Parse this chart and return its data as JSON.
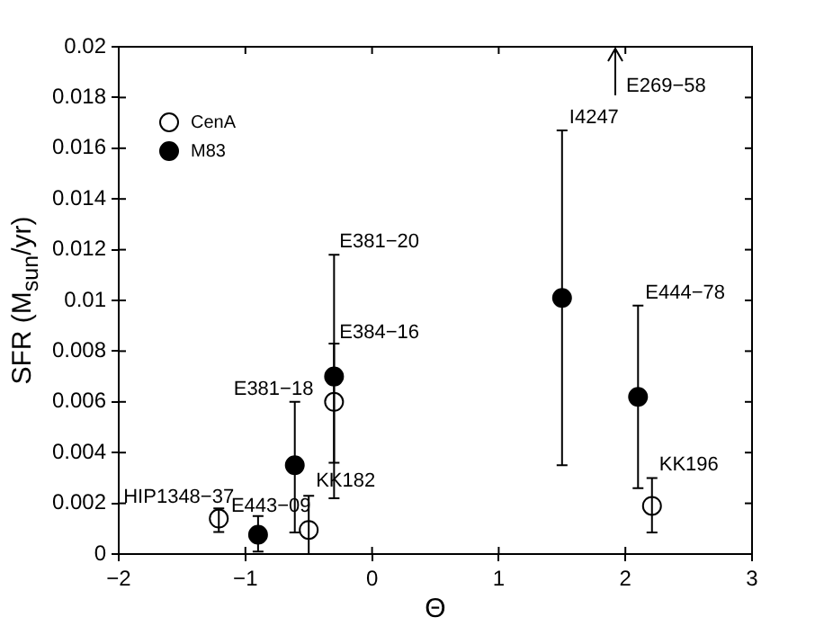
{
  "chart_data": {
    "type": "scatter",
    "xlabel": "Θ",
    "ylabel": "SFR (M$_{sun}$/yr)",
    "xlim": [
      -2,
      3
    ],
    "xticks": [
      -2,
      -1,
      0,
      1,
      2,
      3
    ],
    "ylim": [
      0,
      0.02
    ],
    "yticks": [
      0,
      0.002,
      0.004,
      0.006,
      0.008,
      0.01,
      0.012,
      0.014,
      0.016,
      0.018,
      0.02
    ],
    "legend": "top left",
    "marker": "circle",
    "series": [
      {
        "name": "CenA",
        "color": "#ffffff",
        "x": [
          -1.21,
          -0.5,
          -0.3,
          2.21
        ],
        "values": [
          0.0014,
          0.00095,
          0.006,
          0.0019
        ],
        "errors": [
          [
            0.00087,
            0.0018
          ],
          [
            0,
            0.0023
          ],
          [
            0.0022,
            0.0118
          ],
          [
            0.00085,
            0.003
          ]
        ]
      },
      {
        "name": "M83",
        "color": "#000000",
        "x": [
          -0.9,
          -0.61,
          -0.3,
          1.5,
          2.1
        ],
        "values": [
          0.00076,
          0.0035,
          0.007,
          0.0101,
          0.0062
        ],
        "errors": [
          [
            0.0001,
            0.0015
          ],
          [
            0.00085,
            0.006
          ],
          [
            0.0036,
            0.0083
          ],
          [
            0.0035,
            0.0167
          ],
          [
            0.0026,
            0.0098
          ]
        ]
      }
    ],
    "annotations": [
      {
        "text": "HIP1348−37",
        "x": -1.21,
        "y": 0.0014
      },
      {
        "text": "E443−09",
        "x": -0.9,
        "y": 0.00076
      },
      {
        "text": "E381−18",
        "x": -0.61,
        "y": 0.006
      },
      {
        "text": "KK182",
        "x": -0.5,
        "y": 0.0023
      },
      {
        "text": "E384−16",
        "x": -0.3,
        "y": 0.0083
      },
      {
        "text": "E381−20",
        "x": -0.3,
        "y": 0.0118
      },
      {
        "text": "I4247",
        "x": 1.5,
        "y": 0.0167
      },
      "E269−58",
      {
        "text": "E444−78",
        "x": 2.1,
        "y": 0.0098
      },
      {
        "text": "KK196",
        "x": 2.21,
        "y": 0.003
      }
    ]
  }
}
